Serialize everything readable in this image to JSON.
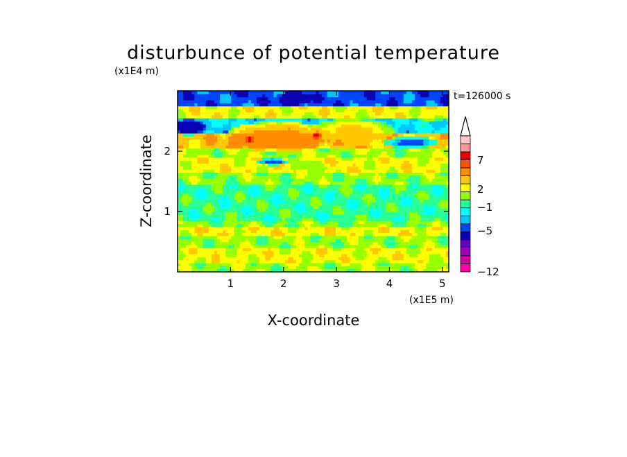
{
  "chart_data": {
    "type": "heatmap",
    "title": "disturbunce of potential temperature",
    "time_label": "t=126000 s",
    "xlabel": "X-coordinate",
    "ylabel": "Z-coordinate",
    "x_unit": "(x1E5 m)",
    "y_unit": "(x1E4 m)",
    "xlim": [
      0,
      5.12
    ],
    "ylim": [
      0,
      3.0
    ],
    "x_ticks": [
      "1",
      "2",
      "3",
      "4",
      "5"
    ],
    "y_ticks": [
      "1",
      "2"
    ],
    "colorbar": {
      "levels": [
        -12,
        -11,
        -9,
        -7,
        -5,
        -4,
        -3,
        -2,
        -1,
        0,
        1,
        2,
        3,
        5,
        7,
        9,
        11
      ],
      "tick_labels": [
        "7",
        "2",
        "−1",
        "−5",
        "−12"
      ],
      "colors": [
        "#ff00aa",
        "#d0009a",
        "#a000b4",
        "#6400c8",
        "#0a00b4",
        "#0046ff",
        "#00c8ff",
        "#00ffff",
        "#28ff96",
        "#96ff00",
        "#ffff00",
        "#ffc800",
        "#ff8c00",
        "#ff5000",
        "#e60000",
        "#ff9696",
        "#ffc8c8"
      ],
      "extend": "max"
    },
    "bands": [
      {
        "z": [
          0.0,
          0.15
        ],
        "value": 0.6
      },
      {
        "z": [
          0.15,
          0.4
        ],
        "value": 1.4
      },
      {
        "z": [
          0.4,
          0.6
        ],
        "value": 0.5
      },
      {
        "z": [
          0.6,
          0.75
        ],
        "value": 1.6
      },
      {
        "z": [
          0.75,
          0.85
        ],
        "value": 0.3
      },
      {
        "z": [
          0.85,
          1.45
        ],
        "value": -0.5
      },
      {
        "z": [
          1.45,
          1.65
        ],
        "value": 0.4
      },
      {
        "z": [
          1.65,
          1.9
        ],
        "value": 1.5
      },
      {
        "z": [
          1.9,
          2.05
        ],
        "value": 0.6
      },
      {
        "z": [
          2.05,
          2.3
        ],
        "value": 2.5
      },
      {
        "z": [
          2.3,
          2.55
        ],
        "value": -2.0
      },
      {
        "z": [
          2.55,
          2.75
        ],
        "value": 1.5
      },
      {
        "z": [
          2.75,
          3.0
        ],
        "value": -3.5
      }
    ],
    "features": [
      {
        "cx": 1.9,
        "cz": 2.25,
        "rx": 1.0,
        "rz": 0.25,
        "value": 4.0
      },
      {
        "cx": 3.3,
        "cz": 2.35,
        "rx": 0.8,
        "rz": 0.2,
        "value": 2.5
      },
      {
        "cx": 1.35,
        "cz": 2.2,
        "rx": 0.08,
        "rz": 0.06,
        "value": 8.0
      },
      {
        "cx": 2.62,
        "cz": 2.27,
        "rx": 0.08,
        "rz": 0.06,
        "value": 8.0
      },
      {
        "cx": 2.2,
        "cz": 2.87,
        "rx": 0.35,
        "rz": 0.12,
        "value": -5.0
      },
      {
        "cx": 1.65,
        "cz": 2.85,
        "rx": 0.2,
        "rz": 0.1,
        "value": -4.0
      },
      {
        "cx": 0.2,
        "cz": 2.4,
        "rx": 0.35,
        "rz": 0.13,
        "value": -5.0
      },
      {
        "cx": 4.4,
        "cz": 2.15,
        "rx": 0.5,
        "rz": 0.1,
        "value": -4.0
      },
      {
        "cx": 3.4,
        "cz": 2.9,
        "rx": 0.2,
        "rz": 0.08,
        "value": -4.0
      },
      {
        "cx": 1.8,
        "cz": 1.83,
        "rx": 0.3,
        "rz": 0.06,
        "value": -4.0
      },
      {
        "cx": 2.5,
        "cz": 1.75,
        "rx": 0.4,
        "rz": 0.1,
        "value": 0.5
      },
      {
        "cx": 4.8,
        "cz": 2.6,
        "rx": 0.3,
        "rz": 0.12,
        "value": 1.0
      }
    ]
  }
}
